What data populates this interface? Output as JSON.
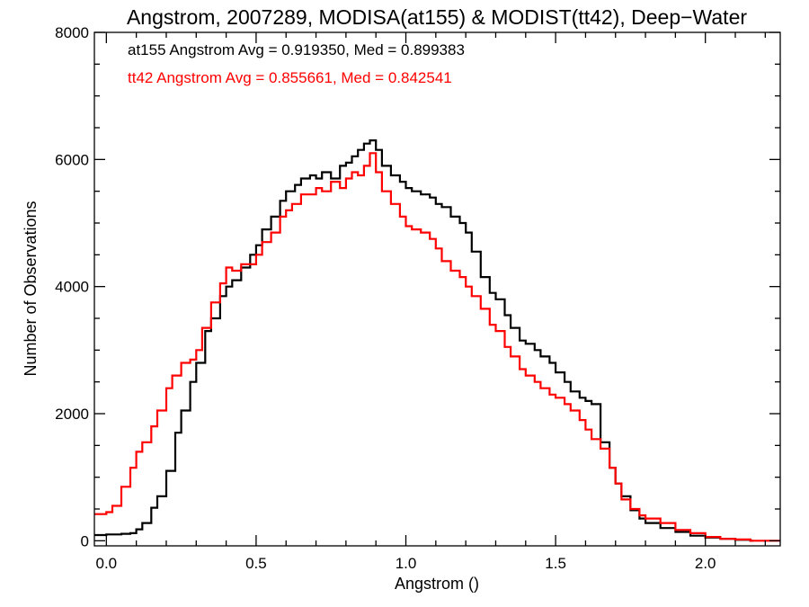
{
  "chart_data": {
    "type": "line",
    "step": true,
    "title": "Angstrom, 2007289, MODISA(at155) & MODIST(tt42), Deep−Water",
    "xlabel": "Angstrom ()",
    "ylabel": "Number of Observations",
    "xlim": [
      -0.04,
      2.25
    ],
    "ylim": [
      -80,
      8000
    ],
    "xticks": [
      0.0,
      0.5,
      1.0,
      1.5,
      2.0
    ],
    "xtick_labels": [
      "0.0",
      "0.5",
      "1.0",
      "1.5",
      "2.0"
    ],
    "yticks": [
      0,
      2000,
      4000,
      6000,
      8000
    ],
    "ytick_labels": [
      "0",
      "2000",
      "4000",
      "6000",
      "8000"
    ],
    "annotations": [
      {
        "text": "at155 Angstrom Avg = 0.919350, Med = 0.899383",
        "color": "#000000"
      },
      {
        "text": "tt42 Angstrom Avg = 0.855661, Med = 0.842541",
        "color": "#ff0000"
      }
    ],
    "grid": false,
    "legend": "none",
    "series": [
      {
        "color": "#000000",
        "points": [
          [
            -0.04,
            90
          ],
          [
            0.0,
            100
          ],
          [
            0.05,
            110
          ],
          [
            0.08,
            120
          ],
          [
            0.1,
            180
          ],
          [
            0.12,
            280
          ],
          [
            0.15,
            520
          ],
          [
            0.17,
            700
          ],
          [
            0.2,
            1100
          ],
          [
            0.23,
            1700
          ],
          [
            0.25,
            2050
          ],
          [
            0.28,
            2500
          ],
          [
            0.3,
            2800
          ],
          [
            0.33,
            3300
          ],
          [
            0.35,
            3500
          ],
          [
            0.38,
            3850
          ],
          [
            0.4,
            4000
          ],
          [
            0.42,
            4100
          ],
          [
            0.45,
            4300
          ],
          [
            0.48,
            4500
          ],
          [
            0.5,
            4650
          ],
          [
            0.52,
            4900
          ],
          [
            0.55,
            5100
          ],
          [
            0.58,
            5350
          ],
          [
            0.6,
            5500
          ],
          [
            0.63,
            5600
          ],
          [
            0.65,
            5700
          ],
          [
            0.68,
            5750
          ],
          [
            0.7,
            5700
          ],
          [
            0.72,
            5800
          ],
          [
            0.75,
            5700
          ],
          [
            0.78,
            5900
          ],
          [
            0.8,
            5950
          ],
          [
            0.82,
            6050
          ],
          [
            0.84,
            6150
          ],
          [
            0.86,
            6250
          ],
          [
            0.88,
            6300
          ],
          [
            0.9,
            6150
          ],
          [
            0.92,
            5900
          ],
          [
            0.95,
            5750
          ],
          [
            0.98,
            5650
          ],
          [
            1.0,
            5550
          ],
          [
            1.02,
            5500
          ],
          [
            1.05,
            5450
          ],
          [
            1.08,
            5400
          ],
          [
            1.1,
            5300
          ],
          [
            1.12,
            5250
          ],
          [
            1.15,
            5100
          ],
          [
            1.18,
            5000
          ],
          [
            1.2,
            4850
          ],
          [
            1.22,
            4550
          ],
          [
            1.25,
            4150
          ],
          [
            1.28,
            3900
          ],
          [
            1.3,
            3800
          ],
          [
            1.33,
            3550
          ],
          [
            1.35,
            3350
          ],
          [
            1.38,
            3150
          ],
          [
            1.4,
            3100
          ],
          [
            1.43,
            3000
          ],
          [
            1.45,
            2900
          ],
          [
            1.48,
            2800
          ],
          [
            1.5,
            2650
          ],
          [
            1.53,
            2500
          ],
          [
            1.55,
            2350
          ],
          [
            1.58,
            2250
          ],
          [
            1.6,
            2200
          ],
          [
            1.62,
            2150
          ],
          [
            1.65,
            1550
          ],
          [
            1.68,
            1150
          ],
          [
            1.7,
            900
          ],
          [
            1.72,
            700
          ],
          [
            1.75,
            480
          ],
          [
            1.78,
            350
          ],
          [
            1.8,
            280
          ],
          [
            1.85,
            200
          ],
          [
            1.9,
            140
          ],
          [
            1.95,
            80
          ],
          [
            2.0,
            50
          ],
          [
            2.05,
            30
          ],
          [
            2.1,
            15
          ],
          [
            2.15,
            0
          ]
        ]
      },
      {
        "color": "#ff0000",
        "points": [
          [
            -0.04,
            420
          ],
          [
            0.0,
            450
          ],
          [
            0.02,
            550
          ],
          [
            0.05,
            850
          ],
          [
            0.08,
            1150
          ],
          [
            0.1,
            1400
          ],
          [
            0.12,
            1550
          ],
          [
            0.15,
            1800
          ],
          [
            0.17,
            2050
          ],
          [
            0.2,
            2400
          ],
          [
            0.22,
            2600
          ],
          [
            0.25,
            2800
          ],
          [
            0.28,
            2850
          ],
          [
            0.3,
            3000
          ],
          [
            0.32,
            3350
          ],
          [
            0.35,
            3750
          ],
          [
            0.38,
            4050
          ],
          [
            0.4,
            4300
          ],
          [
            0.42,
            4250
          ],
          [
            0.45,
            4350
          ],
          [
            0.48,
            4350
          ],
          [
            0.5,
            4500
          ],
          [
            0.52,
            4700
          ],
          [
            0.55,
            4850
          ],
          [
            0.58,
            5100
          ],
          [
            0.6,
            5200
          ],
          [
            0.62,
            5300
          ],
          [
            0.65,
            5450
          ],
          [
            0.68,
            5450
          ],
          [
            0.7,
            5550
          ],
          [
            0.72,
            5500
          ],
          [
            0.75,
            5650
          ],
          [
            0.78,
            5550
          ],
          [
            0.8,
            5700
          ],
          [
            0.82,
            5800
          ],
          [
            0.84,
            5750
          ],
          [
            0.86,
            5900
          ],
          [
            0.88,
            6100
          ],
          [
            0.9,
            5800
          ],
          [
            0.92,
            5500
          ],
          [
            0.95,
            5300
          ],
          [
            0.98,
            5100
          ],
          [
            1.0,
            4950
          ],
          [
            1.02,
            4900
          ],
          [
            1.05,
            4850
          ],
          [
            1.08,
            4750
          ],
          [
            1.1,
            4600
          ],
          [
            1.12,
            4400
          ],
          [
            1.15,
            4250
          ],
          [
            1.18,
            4150
          ],
          [
            1.2,
            4000
          ],
          [
            1.22,
            3850
          ],
          [
            1.25,
            3650
          ],
          [
            1.28,
            3400
          ],
          [
            1.3,
            3300
          ],
          [
            1.33,
            3050
          ],
          [
            1.35,
            2900
          ],
          [
            1.38,
            2700
          ],
          [
            1.4,
            2600
          ],
          [
            1.43,
            2500
          ],
          [
            1.45,
            2400
          ],
          [
            1.48,
            2300
          ],
          [
            1.5,
            2250
          ],
          [
            1.53,
            2150
          ],
          [
            1.55,
            2050
          ],
          [
            1.58,
            1900
          ],
          [
            1.6,
            1750
          ],
          [
            1.62,
            1600
          ],
          [
            1.65,
            1450
          ],
          [
            1.68,
            1150
          ],
          [
            1.7,
            900
          ],
          [
            1.72,
            650
          ],
          [
            1.75,
            500
          ],
          [
            1.78,
            400
          ],
          [
            1.8,
            350
          ],
          [
            1.85,
            280
          ],
          [
            1.9,
            170
          ],
          [
            1.95,
            120
          ],
          [
            2.0,
            60
          ],
          [
            2.05,
            30
          ],
          [
            2.1,
            20
          ],
          [
            2.15,
            0
          ],
          [
            2.25,
            0
          ]
        ]
      }
    ]
  }
}
